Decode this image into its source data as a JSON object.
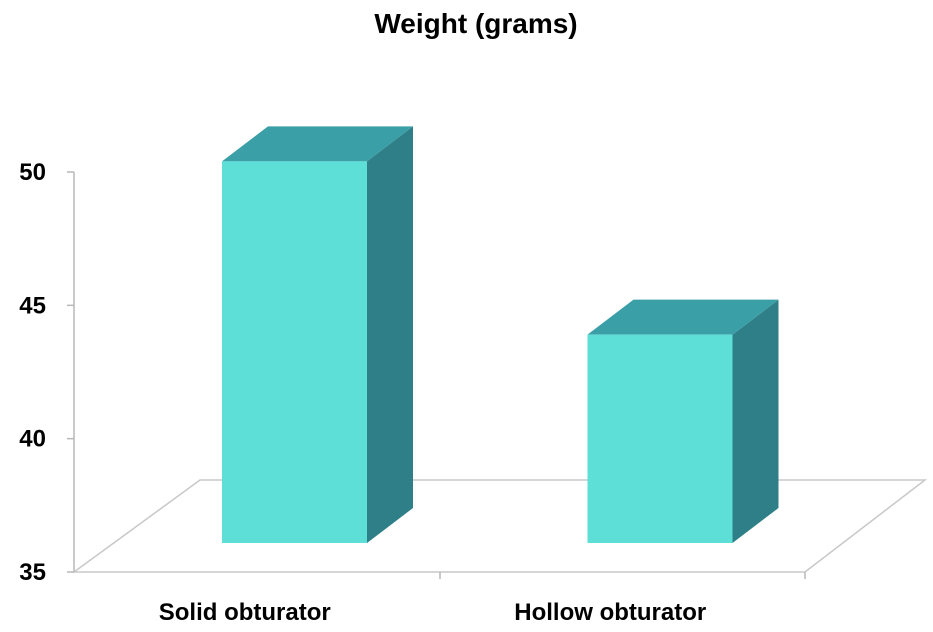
{
  "chart_data": {
    "type": "bar",
    "title": "Weight (grams)",
    "categories": [
      "Solid obturator",
      "Hollow obturator"
    ],
    "values": [
      50.4,
      43.9
    ],
    "xlabel": "",
    "ylabel": "",
    "ylim": [
      35,
      50
    ],
    "yticks": [
      35,
      40,
      45,
      50
    ],
    "grid": false,
    "legend": "none",
    "style": "3d-column",
    "colors": {
      "front": "#5ddfd8",
      "top": "#3a9fa6",
      "side": "#2f7f88",
      "floor": "#c8c8c8",
      "axis": "#b8b8b8"
    }
  }
}
